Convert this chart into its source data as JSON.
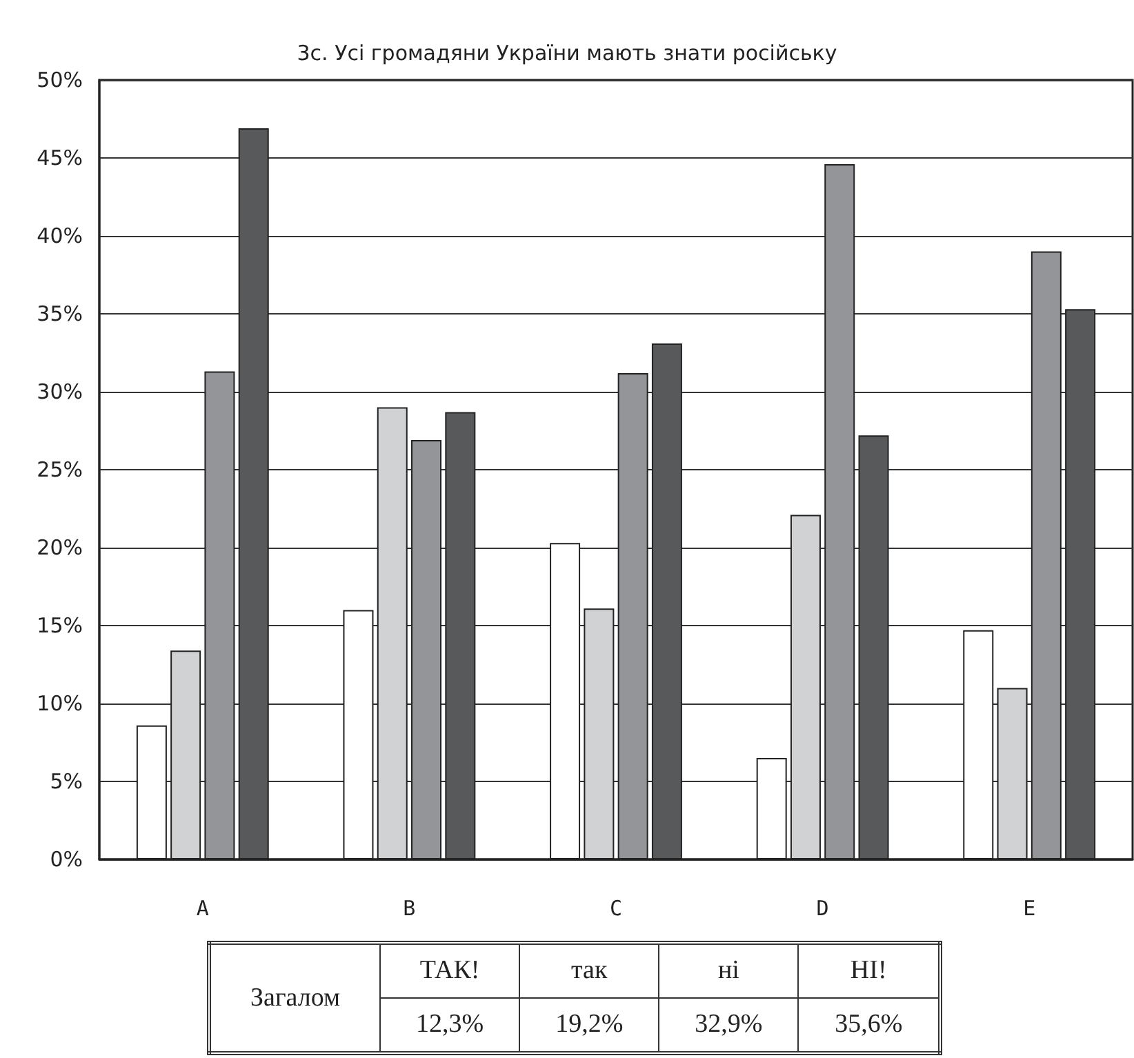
{
  "chart_data": {
    "type": "bar",
    "title": "3с. Усі громадяни України мають знати російську",
    "categories": [
      "A",
      "B",
      "C",
      "D",
      "E"
    ],
    "series": [
      {
        "color": "#ffffff",
        "values": [
          8.6,
          16.0,
          20.3,
          6.5,
          14.7
        ]
      },
      {
        "color": "#d1d2d4",
        "values": [
          13.4,
          29.0,
          16.1,
          22.1,
          11.0
        ]
      },
      {
        "color": "#939598",
        "values": [
          31.3,
          26.9,
          31.2,
          44.6,
          39.0
        ]
      },
      {
        "color": "#58595b",
        "values": [
          46.9,
          28.7,
          33.1,
          27.2,
          35.3
        ]
      }
    ],
    "ylim": [
      0,
      50
    ],
    "yticks": [
      {
        "value": 0,
        "label": "0%"
      },
      {
        "value": 5,
        "label": "5%"
      },
      {
        "value": 10,
        "label": "10%"
      },
      {
        "value": 15,
        "label": "15%"
      },
      {
        "value": 20,
        "label": "20%"
      },
      {
        "value": 25,
        "label": "25%"
      },
      {
        "value": 30,
        "label": "30%"
      },
      {
        "value": 35,
        "label": "35%"
      },
      {
        "value": 40,
        "label": "40%"
      },
      {
        "value": 45,
        "label": "45%"
      },
      {
        "value": 50,
        "label": "50%"
      }
    ],
    "grid": "y",
    "annotations": [
      "Загалом",
      "ТАК!",
      "так",
      "ні",
      "НІ!",
      "12,3%",
      "19,2%",
      "32,9%",
      "35,6%"
    ]
  }
}
